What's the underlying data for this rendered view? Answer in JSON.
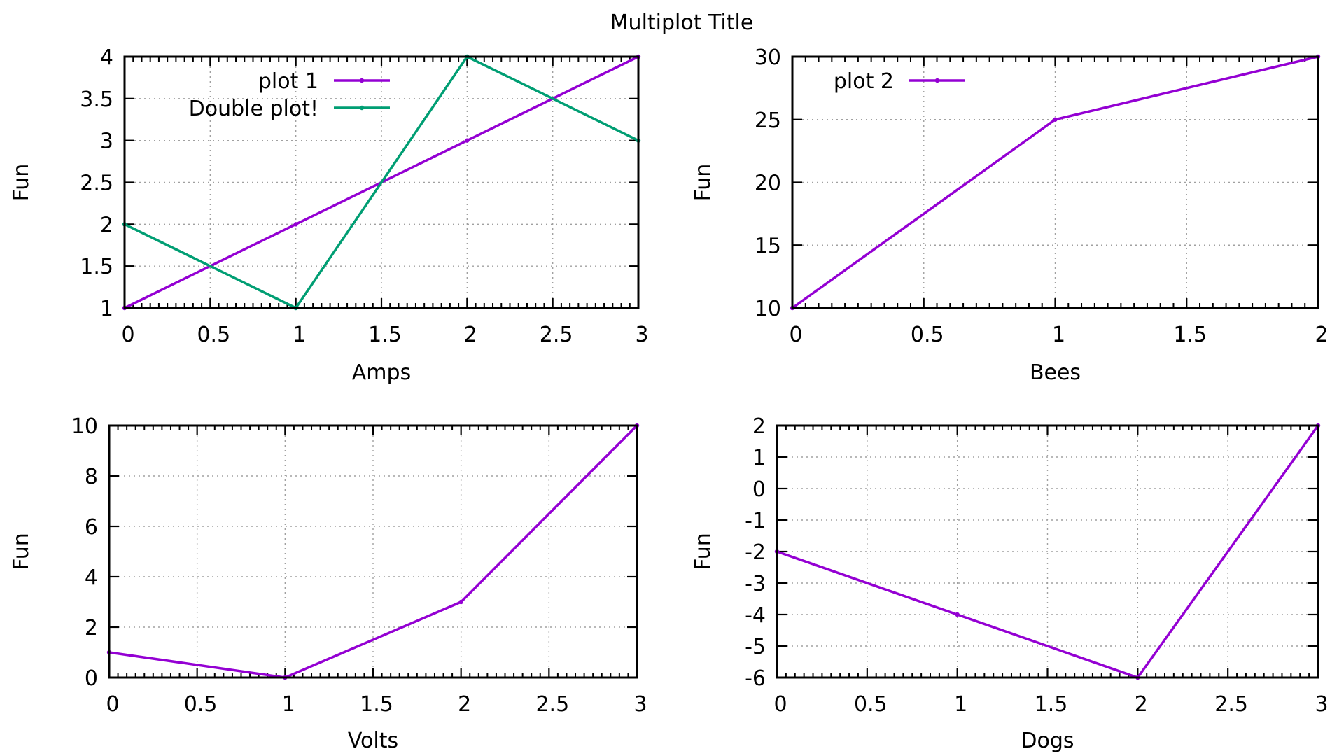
{
  "title": "Multiplot Title",
  "colors": {
    "purple": "#9400d3",
    "green": "#009e73",
    "grid": "#a0a0a0",
    "axis": "#000000"
  },
  "chart_data": [
    {
      "type": "line",
      "xlabel": "Amps",
      "ylabel": "Fun",
      "xlim": [
        0,
        3
      ],
      "ylim": [
        1,
        4
      ],
      "xticks": [
        "0",
        "0.5",
        "1",
        "1.5",
        "2",
        "2.5",
        "3"
      ],
      "yticks": [
        "1",
        "1.5",
        "2",
        "2.5",
        "3",
        "3.5",
        "4"
      ],
      "grid": true,
      "legend_position": "top-left",
      "series": [
        {
          "name": "plot 1",
          "color": "#9400d3",
          "x": [
            0,
            1,
            2,
            3
          ],
          "y": [
            1,
            2,
            3,
            4
          ]
        },
        {
          "name": "Double plot!",
          "color": "#009e73",
          "x": [
            0,
            1,
            2,
            3
          ],
          "y": [
            2,
            1,
            4,
            3
          ]
        }
      ]
    },
    {
      "type": "line",
      "xlabel": "Bees",
      "ylabel": "Fun",
      "xlim": [
        0,
        2
      ],
      "ylim": [
        10,
        30
      ],
      "xticks": [
        "0",
        "0.5",
        "1",
        "1.5",
        "2"
      ],
      "yticks": [
        "10",
        "15",
        "20",
        "25",
        "30"
      ],
      "grid": true,
      "legend_position": "top-left",
      "series": [
        {
          "name": "plot 2",
          "color": "#9400d3",
          "x": [
            0,
            1,
            2
          ],
          "y": [
            10,
            25,
            30
          ]
        }
      ]
    },
    {
      "type": "line",
      "xlabel": "Volts",
      "ylabel": "Fun",
      "xlim": [
        0,
        3
      ],
      "ylim": [
        0,
        10
      ],
      "xticks": [
        "0",
        "0.5",
        "1",
        "1.5",
        "2",
        "2.5",
        "3"
      ],
      "yticks": [
        "0",
        "2",
        "4",
        "6",
        "8",
        "10"
      ],
      "grid": true,
      "legend_position": "none",
      "series": [
        {
          "color": "#9400d3",
          "x": [
            0,
            1,
            2,
            3
          ],
          "y": [
            1,
            0,
            3,
            10
          ]
        }
      ]
    },
    {
      "type": "line",
      "xlabel": "Dogs",
      "ylabel": "Fun",
      "xlim": [
        0,
        3
      ],
      "ylim": [
        -6,
        2
      ],
      "xticks": [
        "0",
        "0.5",
        "1",
        "1.5",
        "2",
        "2.5",
        "3"
      ],
      "yticks": [
        "-6",
        "-5",
        "-4",
        "-3",
        "-2",
        "-1",
        "0",
        "1",
        "2"
      ],
      "grid": true,
      "legend_position": "none",
      "series": [
        {
          "color": "#9400d3",
          "x": [
            0,
            1,
            2,
            3
          ],
          "y": [
            -2,
            -4,
            -6,
            2
          ]
        }
      ]
    }
  ]
}
